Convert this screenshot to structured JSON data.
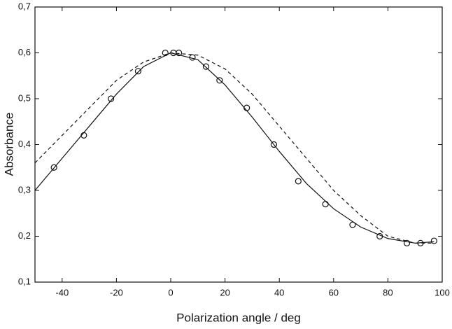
{
  "chart_data": {
    "type": "scatter",
    "xlabel": "Polarization angle / deg",
    "ylabel": "Absorbance",
    "xlim": [
      -50,
      100
    ],
    "ylim": [
      0.1,
      0.7
    ],
    "xticks": [
      -40,
      -20,
      0,
      20,
      40,
      60,
      80,
      100
    ],
    "yticks": [
      {
        "value": 0.1,
        "label": "0,1"
      },
      {
        "value": 0.2,
        "label": "0,2"
      },
      {
        "value": 0.3,
        "label": "0,3"
      },
      {
        "value": 0.4,
        "label": "0,4"
      },
      {
        "value": 0.5,
        "label": "0,5"
      },
      {
        "value": 0.6,
        "label": "0,6"
      },
      {
        "value": 0.7,
        "label": "0,7"
      }
    ],
    "series": [
      {
        "kind": "points",
        "color": "#111111",
        "x": [
          -43,
          -32,
          -22,
          -12,
          -2,
          1,
          3,
          8,
          13,
          18,
          28,
          38,
          47,
          57,
          67,
          77,
          87,
          92,
          97
        ],
        "values": [
          0.35,
          0.42,
          0.5,
          0.56,
          0.6,
          0.6,
          0.6,
          0.59,
          0.57,
          0.54,
          0.48,
          0.4,
          0.32,
          0.27,
          0.225,
          0.2,
          0.185,
          0.185,
          0.19
        ]
      },
      {
        "kind": "solid",
        "color": "#111111",
        "x": [
          -50,
          -40,
          -30,
          -20,
          -10,
          0,
          10,
          20,
          30,
          40,
          50,
          60,
          70,
          80,
          90,
          97
        ],
        "values": [
          0.3,
          0.37,
          0.44,
          0.51,
          0.57,
          0.6,
          0.585,
          0.53,
          0.46,
          0.385,
          0.315,
          0.26,
          0.22,
          0.195,
          0.185,
          0.188
        ]
      },
      {
        "kind": "dashed",
        "color": "#111111",
        "x": [
          -50,
          -40,
          -30,
          -20,
          -10,
          0,
          10,
          20,
          30,
          40,
          50,
          60,
          70,
          80,
          90,
          97
        ],
        "values": [
          0.36,
          0.42,
          0.48,
          0.54,
          0.58,
          0.6,
          0.595,
          0.565,
          0.51,
          0.44,
          0.37,
          0.3,
          0.245,
          0.2,
          0.185,
          0.185
        ]
      }
    ]
  }
}
